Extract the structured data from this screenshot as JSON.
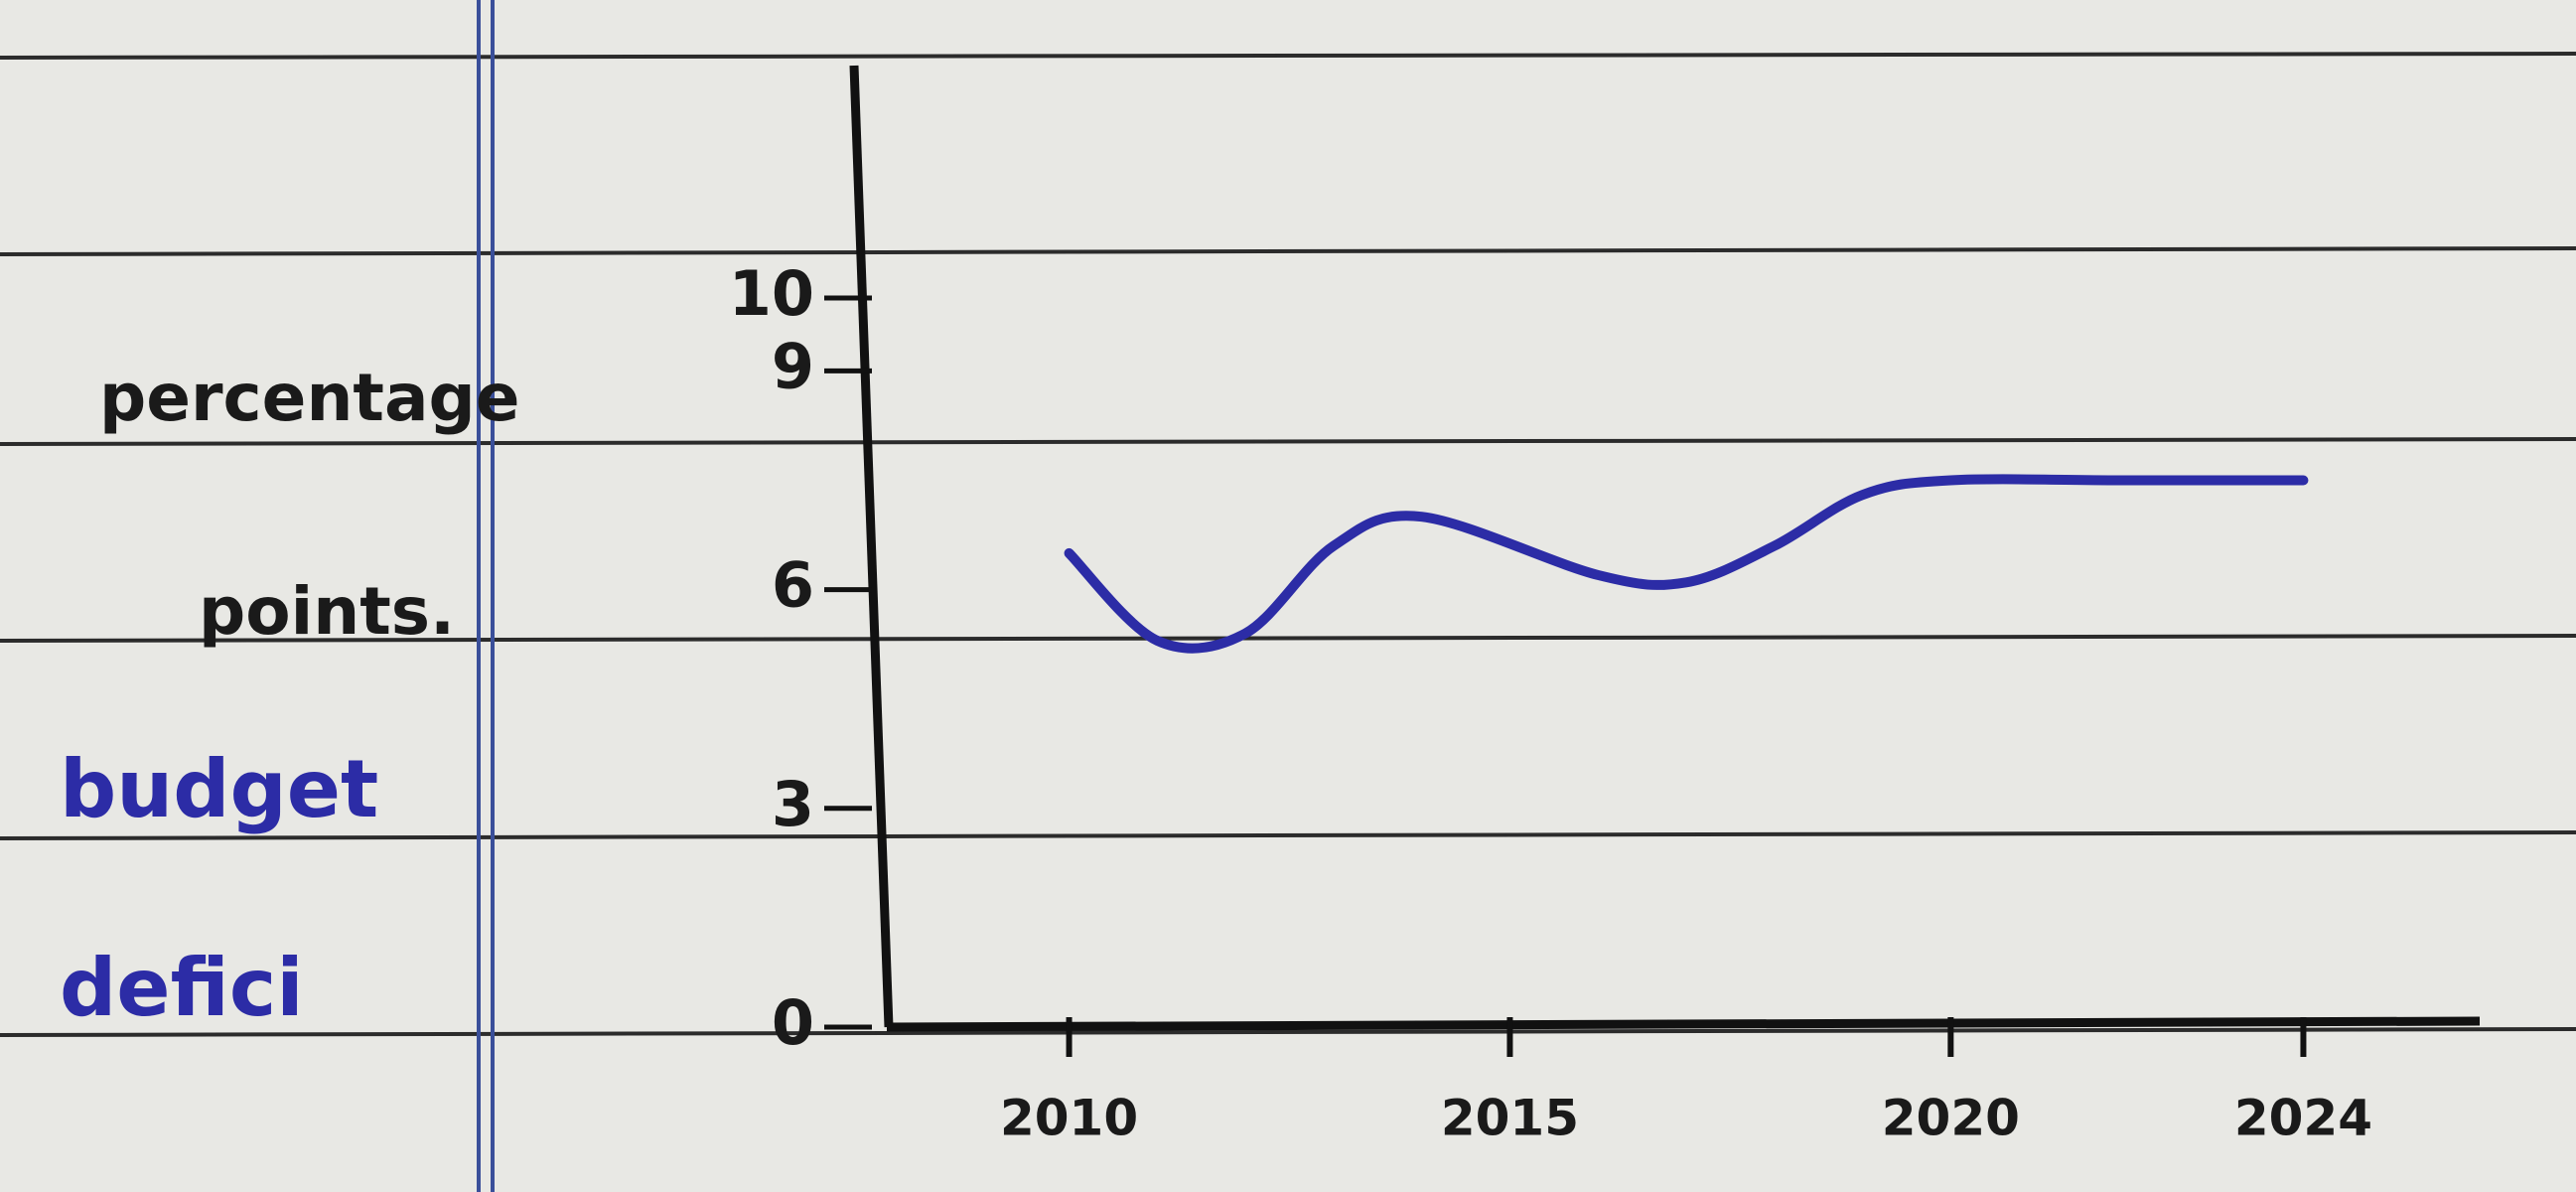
{
  "chart_data": {
    "type": "line",
    "y_label_lines": [
      "percentage",
      "points."
    ],
    "y_label_blue_lines": [
      "budget",
      "defici"
    ],
    "x": [
      2010,
      2011,
      2012,
      2013,
      2014,
      2016,
      2017,
      2018,
      2019,
      2020,
      2022,
      2024
    ],
    "series": [
      {
        "color": "#2c2ca6",
        "values": [
          6.5,
          5.3,
          5.4,
          6.6,
          7.0,
          6.2,
          6.1,
          6.6,
          7.3,
          7.5,
          7.5,
          7.5
        ]
      }
    ],
    "xlim": [
      2008,
      2026
    ],
    "xticks": [
      2010,
      2015,
      2020,
      2024
    ],
    "ylim": [
      0,
      10
    ],
    "yticks": [
      0,
      3,
      6,
      9,
      10
    ]
  }
}
